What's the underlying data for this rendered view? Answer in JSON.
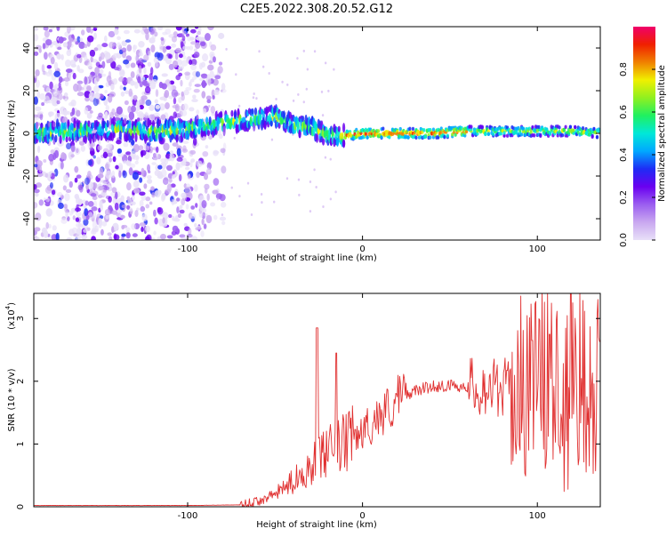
{
  "figure": {
    "title": "C2E5.2022.308.20.52.G12"
  },
  "colors": {
    "snr_line": "#e03030",
    "axis": "#000000",
    "colormap": [
      "#e8e0f8",
      "#c9a8f0",
      "#9b5ef0",
      "#6a00f0",
      "#1e2cf5",
      "#00a8ff",
      "#00e8d8",
      "#20f060",
      "#90f020",
      "#f0f000",
      "#f08000",
      "#f02000",
      "#f0006a"
    ]
  },
  "chart_data": [
    {
      "type": "heatmap",
      "xlabel": "Height of straight line (km)",
      "ylabel": "Frequency (Hz)",
      "xlim": [
        -188,
        136
      ],
      "ylim": [
        -50,
        50
      ],
      "xticks": [
        "-100",
        "0",
        "100"
      ],
      "yticks": [
        "-40",
        "-20",
        "0",
        "20",
        "40"
      ],
      "colorbar": {
        "label": "Normalized spectral amplitude",
        "range": [
          0,
          1
        ],
        "ticks": [
          "0.0",
          "0.2",
          "0.4",
          "0.6",
          "0.8"
        ]
      },
      "ridge": {
        "x": [
          -188,
          -160,
          -140,
          -120,
          -100,
          -80,
          -60,
          -50,
          -45,
          -40,
          -30,
          -20,
          -10,
          0,
          20,
          40,
          60,
          80,
          100,
          120,
          136
        ],
        "freq": [
          0,
          1,
          2,
          1,
          2,
          5,
          7,
          8,
          6,
          4,
          3,
          -1,
          -1,
          0,
          0,
          0,
          1,
          1,
          1,
          1,
          0
        ]
      }
    },
    {
      "type": "line",
      "xlabel": "Height of straight line (km)",
      "ylabel": "SNR (10 * v/v)",
      "y_multiplier": "(x10",
      "y_multiplier_exp": "4",
      "xlim": [
        -188,
        136
      ],
      "ylim": [
        0,
        3.4
      ],
      "xticks": [
        "-100",
        "0",
        "100"
      ],
      "yticks": [
        "0",
        "1",
        "2",
        "3"
      ],
      "series": [
        {
          "name": "SNR",
          "x": [
            -188,
            -100,
            -70,
            -60,
            -50,
            -40,
            -30,
            -20,
            -10,
            0,
            10,
            20,
            30,
            40,
            50,
            60,
            70,
            80,
            90,
            100,
            110,
            120,
            130,
            136
          ],
          "y": [
            0.02,
            0.02,
            0.03,
            0.08,
            0.2,
            0.4,
            0.65,
            0.85,
            1.0,
            1.2,
            1.45,
            1.7,
            1.85,
            1.92,
            1.93,
            1.92,
            1.9,
            1.9,
            1.92,
            2.0,
            2.05,
            2.1,
            2.0,
            2.0
          ],
          "peaks": [
            [
              -26,
              2.85
            ],
            [
              -15,
              2.45
            ],
            [
              119,
              3.4
            ],
            [
              107,
              2.75
            ],
            [
              97,
              2.65
            ]
          ]
        }
      ]
    }
  ]
}
